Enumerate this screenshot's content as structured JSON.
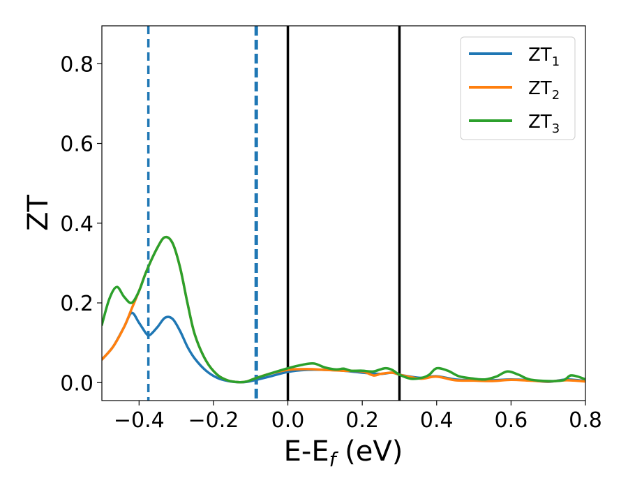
{
  "chart_data": {
    "type": "line",
    "title": "",
    "xlabel": "E-E",
    "xlabel_sub": "f",
    "xlabel_unit": " (eV)",
    "ylabel": "ZT",
    "xlim": [
      -0.5,
      0.8
    ],
    "ylim": [
      -0.045,
      0.895
    ],
    "xticks": [
      -0.4,
      -0.2,
      0.0,
      0.2,
      0.4,
      0.6,
      0.8
    ],
    "xtick_labels": [
      "−0.4",
      "−0.2",
      "0.0",
      "0.2",
      "0.4",
      "0.6",
      "0.8"
    ],
    "yticks": [
      0.0,
      0.2,
      0.4,
      0.6,
      0.8
    ],
    "ytick_labels": [
      "0.0",
      "0.2",
      "0.4",
      "0.6",
      "0.8"
    ],
    "grid": false,
    "legend_position": "top-right",
    "series": [
      {
        "name": "ZT",
        "name_sub": "1",
        "color": "#1f77b4",
        "x": [
          -0.5,
          -0.47,
          -0.44,
          -0.42,
          -0.4,
          -0.38,
          -0.37,
          -0.35,
          -0.33,
          -0.31,
          -0.29,
          -0.27,
          -0.25,
          -0.22,
          -0.19,
          -0.16,
          -0.13,
          -0.11,
          -0.09,
          -0.05,
          0.0,
          0.05,
          0.1,
          0.15,
          0.2,
          0.25,
          0.28,
          0.3,
          0.33,
          0.36,
          0.4,
          0.45,
          0.5,
          0.55,
          0.6,
          0.65,
          0.7,
          0.75,
          0.8
        ],
        "y": [
          0.058,
          0.09,
          0.14,
          0.175,
          0.15,
          0.122,
          0.12,
          0.14,
          0.163,
          0.16,
          0.13,
          0.09,
          0.06,
          0.03,
          0.012,
          0.004,
          0.001,
          0.002,
          0.006,
          0.015,
          0.027,
          0.032,
          0.032,
          0.03,
          0.025,
          0.022,
          0.025,
          0.02,
          0.015,
          0.012,
          0.016,
          0.008,
          0.006,
          0.006,
          0.008,
          0.006,
          0.002,
          0.008,
          0.004
        ]
      },
      {
        "name": "ZT",
        "name_sub": "2",
        "color": "#ff7f0e",
        "x": [
          -0.5,
          -0.47,
          -0.44,
          -0.42,
          -0.4,
          -0.38,
          -0.35,
          -0.33,
          -0.31,
          -0.29,
          -0.27,
          -0.25,
          -0.22,
          -0.19,
          -0.16,
          -0.13,
          -0.11,
          -0.09,
          -0.05,
          0.0,
          0.05,
          0.1,
          0.15,
          0.2,
          0.23,
          0.25,
          0.28,
          0.3,
          0.33,
          0.36,
          0.4,
          0.45,
          0.5,
          0.55,
          0.6,
          0.65,
          0.7,
          0.75,
          0.8
        ],
        "y": [
          0.058,
          0.09,
          0.14,
          0.185,
          0.23,
          0.28,
          0.34,
          0.365,
          0.35,
          0.29,
          0.2,
          0.12,
          0.055,
          0.02,
          0.005,
          0.001,
          0.003,
          0.01,
          0.022,
          0.032,
          0.034,
          0.032,
          0.03,
          0.028,
          0.018,
          0.022,
          0.025,
          0.02,
          0.014,
          0.01,
          0.015,
          0.006,
          0.005,
          0.004,
          0.007,
          0.005,
          0.003,
          0.006,
          0.003
        ]
      },
      {
        "name": "ZT",
        "name_sub": "3",
        "color": "#2ca02c",
        "x": [
          -0.5,
          -0.48,
          -0.46,
          -0.44,
          -0.42,
          -0.4,
          -0.38,
          -0.35,
          -0.33,
          -0.31,
          -0.29,
          -0.27,
          -0.25,
          -0.22,
          -0.19,
          -0.16,
          -0.13,
          -0.11,
          -0.09,
          -0.05,
          0.0,
          0.04,
          0.07,
          0.1,
          0.13,
          0.15,
          0.17,
          0.2,
          0.23,
          0.26,
          0.28,
          0.3,
          0.33,
          0.36,
          0.38,
          0.4,
          0.43,
          0.46,
          0.5,
          0.53,
          0.56,
          0.59,
          0.62,
          0.65,
          0.7,
          0.74,
          0.76,
          0.78,
          0.8
        ],
        "y": [
          0.145,
          0.21,
          0.24,
          0.215,
          0.2,
          0.23,
          0.28,
          0.34,
          0.365,
          0.35,
          0.29,
          0.2,
          0.12,
          0.055,
          0.02,
          0.005,
          0.001,
          0.003,
          0.01,
          0.022,
          0.036,
          0.045,
          0.048,
          0.038,
          0.033,
          0.035,
          0.03,
          0.03,
          0.028,
          0.036,
          0.032,
          0.02,
          0.01,
          0.012,
          0.02,
          0.036,
          0.03,
          0.016,
          0.01,
          0.008,
          0.015,
          0.028,
          0.02,
          0.008,
          0.004,
          0.006,
          0.018,
          0.015,
          0.008
        ]
      }
    ],
    "vlines": [
      {
        "x": -0.375,
        "color": "#1f77b4",
        "style": "dashed",
        "weight": "normal"
      },
      {
        "x": -0.085,
        "color": "#1f77b4",
        "style": "dashed",
        "weight": "thick"
      },
      {
        "x": 0.0,
        "color": "#000000",
        "style": "solid",
        "weight": "normal"
      },
      {
        "x": 0.3,
        "color": "#000000",
        "style": "solid",
        "weight": "normal"
      }
    ]
  }
}
